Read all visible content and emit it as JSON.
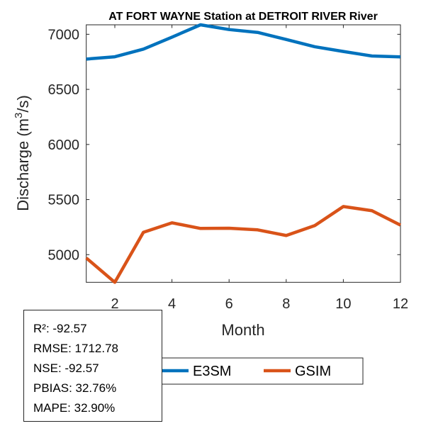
{
  "chart_data": {
    "type": "line",
    "title": "AT FORT WAYNE  Station at  DETROIT RIVER  River",
    "xlabel": "Month",
    "ylabel": "Discharge (m³/s)",
    "ylabel_base": "Discharge (m",
    "ylabel_sup": "3",
    "ylabel_end": "/s)",
    "x": [
      1,
      2,
      3,
      4,
      5,
      6,
      7,
      8,
      9,
      10,
      11,
      12
    ],
    "xlim": [
      1,
      12
    ],
    "ylim": [
      4749,
      7086
    ],
    "xticks": [
      2,
      4,
      6,
      8,
      10,
      12
    ],
    "yticks": [
      5000,
      5500,
      6000,
      6500,
      7000
    ],
    "grid": false,
    "legend_position": "bottom-center",
    "series": [
      {
        "name": "E3SM",
        "color": "#0072BD",
        "values": [
          6775,
          6796,
          6865,
          6974,
          7086,
          7043,
          7017,
          6953,
          6887,
          6844,
          6803,
          6795
        ]
      },
      {
        "name": "GSIM",
        "color": "#D95319",
        "values": [
          4970,
          4749,
          5203,
          5289,
          5238,
          5240,
          5225,
          5174,
          5264,
          5437,
          5399,
          5268
        ]
      }
    ]
  },
  "stats": [
    "R²: -92.57",
    "RMSE: 1712.78",
    "NSE: -92.57",
    "PBIAS: 32.76%",
    "MAPE: 32.90%"
  ]
}
